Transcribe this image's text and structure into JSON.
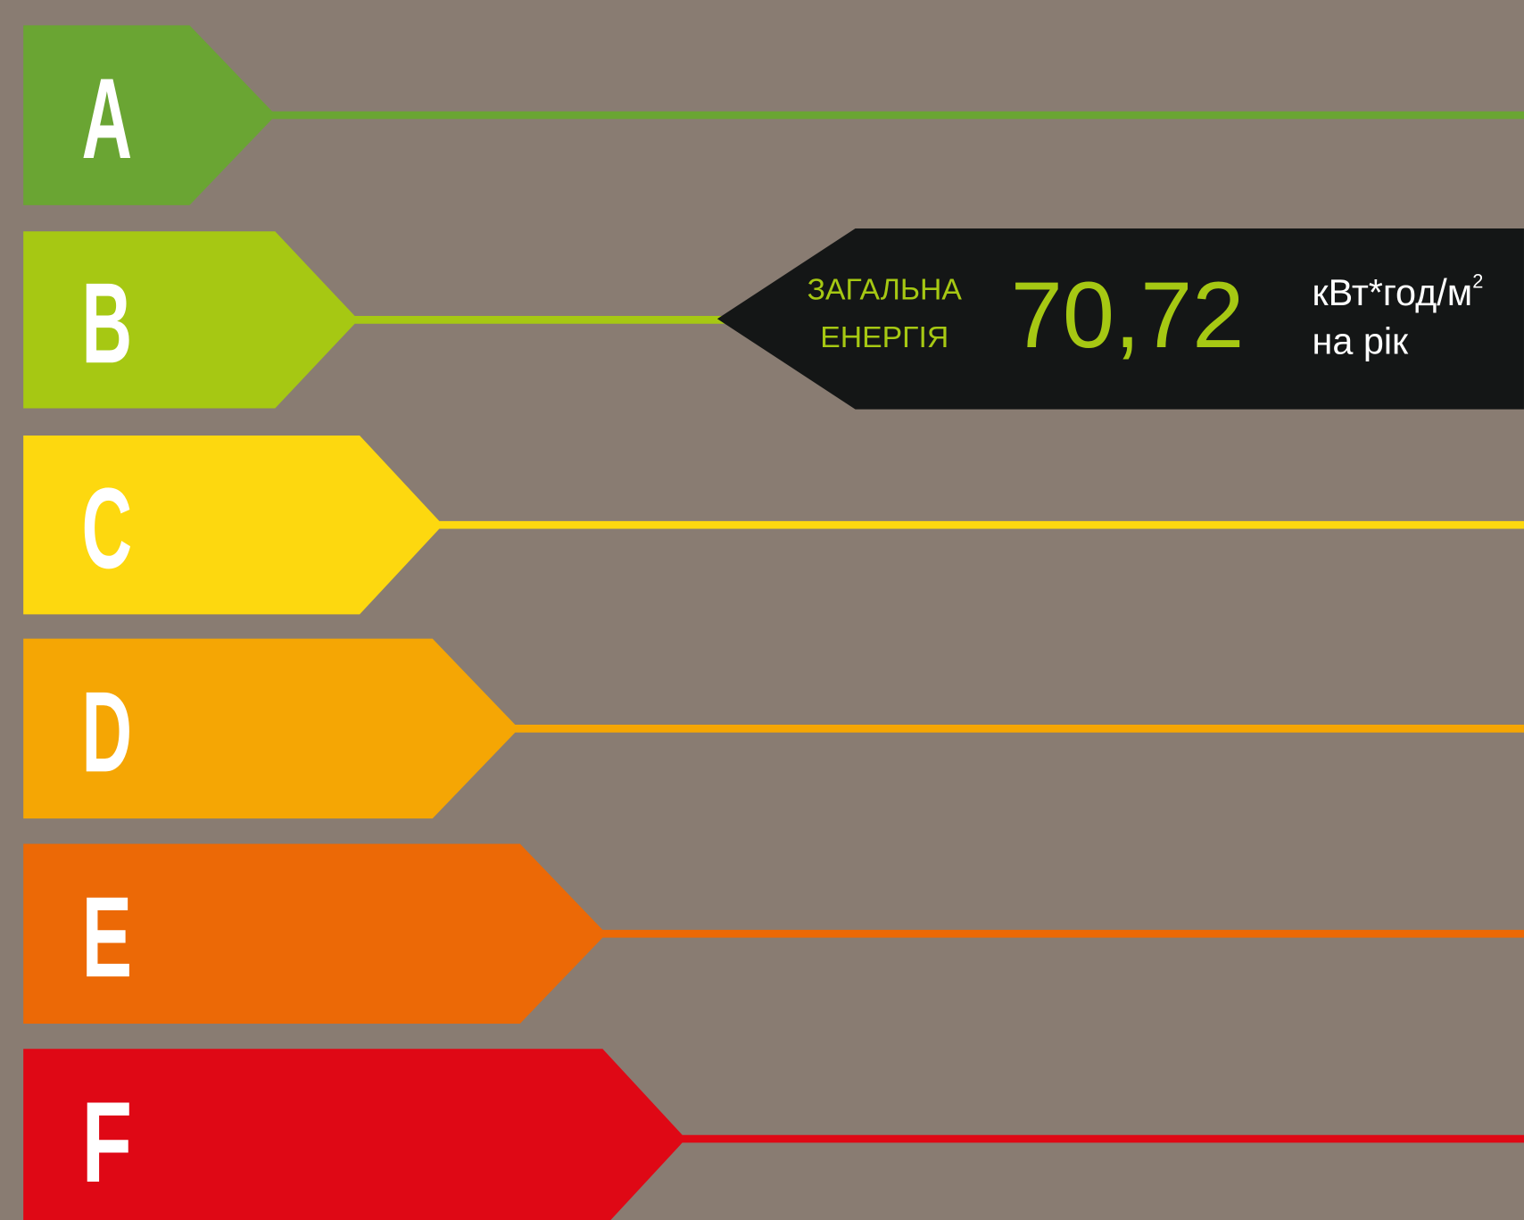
{
  "classes": [
    {
      "letter": "A",
      "color": "#6aa533"
    },
    {
      "letter": "B",
      "color": "#a6c813"
    },
    {
      "letter": "C",
      "color": "#fdd80f"
    },
    {
      "letter": "D",
      "color": "#f5a604"
    },
    {
      "letter": "E",
      "color": "#ec6906"
    },
    {
      "letter": "F",
      "color": "#df0815"
    }
  ],
  "indicator": {
    "label_line1": "ЗАГАЛЬНА",
    "label_line2": "ЕНЕРГІЯ",
    "value": "70,72",
    "unit": "кВт*год/м",
    "unit_power": "2",
    "unit_line2": "на рік",
    "color": "#a6c813"
  }
}
